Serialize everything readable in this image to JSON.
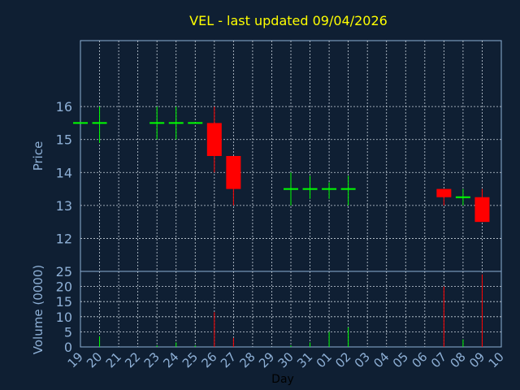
{
  "chart_data": {
    "type": "candlestick",
    "title": "VEL - last updated 09/04/2026",
    "xlabel": "Day",
    "ylabel_price": "Price",
    "ylabel_volume": "Volume (0000)",
    "x_ticks": [
      "19",
      "20",
      "21",
      "22",
      "23",
      "24",
      "25",
      "26",
      "27",
      "28",
      "29",
      "30",
      "31",
      "01",
      "02",
      "03",
      "04",
      "05",
      "06",
      "07",
      "08",
      "09",
      "10"
    ],
    "price_yticks": [
      12,
      13,
      14,
      15,
      16
    ],
    "price_ylim": [
      11,
      18
    ],
    "volume_yticks": [
      0,
      5,
      10,
      15,
      20,
      25
    ],
    "volume_ylim": [
      0,
      25
    ],
    "grid": true,
    "up_color": "#00ff00",
    "down_color": "#ff0000",
    "candles": [
      {
        "day": "19",
        "open": 15.5,
        "high": 15.5,
        "low": 15.5,
        "close": 15.5
      },
      {
        "day": "20",
        "open": 15.5,
        "high": 16.0,
        "low": 14.9,
        "close": 15.5
      },
      {
        "day": "23",
        "open": 15.5,
        "high": 16.0,
        "low": 15.0,
        "close": 15.5
      },
      {
        "day": "24",
        "open": 15.5,
        "high": 16.0,
        "low": 15.0,
        "close": 15.5
      },
      {
        "day": "25",
        "open": 15.5,
        "high": 15.5,
        "low": 15.5,
        "close": 15.5
      },
      {
        "day": "26",
        "open": 15.5,
        "high": 16.0,
        "low": 14.0,
        "close": 14.5
      },
      {
        "day": "27",
        "open": 14.5,
        "high": 14.5,
        "low": 13.0,
        "close": 13.5
      },
      {
        "day": "30",
        "open": 13.5,
        "high": 14.0,
        "low": 13.0,
        "close": 13.5
      },
      {
        "day": "31",
        "open": 13.5,
        "high": 13.9,
        "low": 13.2,
        "close": 13.5
      },
      {
        "day": "01",
        "open": 13.5,
        "high": 13.7,
        "low": 13.2,
        "close": 13.5
      },
      {
        "day": "02",
        "open": 13.5,
        "high": 13.9,
        "low": 13.0,
        "close": 13.5
      },
      {
        "day": "07",
        "open": 13.5,
        "high": 13.5,
        "low": 13.0,
        "close": 13.25
      },
      {
        "day": "08",
        "open": 13.25,
        "high": 13.5,
        "low": 13.0,
        "close": 13.25
      },
      {
        "day": "09",
        "open": 13.25,
        "high": 13.5,
        "low": 12.5,
        "close": 12.5
      }
    ],
    "volumes": [
      {
        "day": "19",
        "value": 0
      },
      {
        "day": "20",
        "value": 3.5
      },
      {
        "day": "23",
        "value": 0.5
      },
      {
        "day": "24",
        "value": 1.5
      },
      {
        "day": "25",
        "value": 0.5
      },
      {
        "day": "26",
        "value": 11.5
      },
      {
        "day": "27",
        "value": 3
      },
      {
        "day": "30",
        "value": 0.5
      },
      {
        "day": "31",
        "value": 1.5
      },
      {
        "day": "01",
        "value": 5
      },
      {
        "day": "02",
        "value": 6.5
      },
      {
        "day": "07",
        "value": 20
      },
      {
        "day": "08",
        "value": 2.5
      },
      {
        "day": "09",
        "value": 24
      }
    ]
  }
}
